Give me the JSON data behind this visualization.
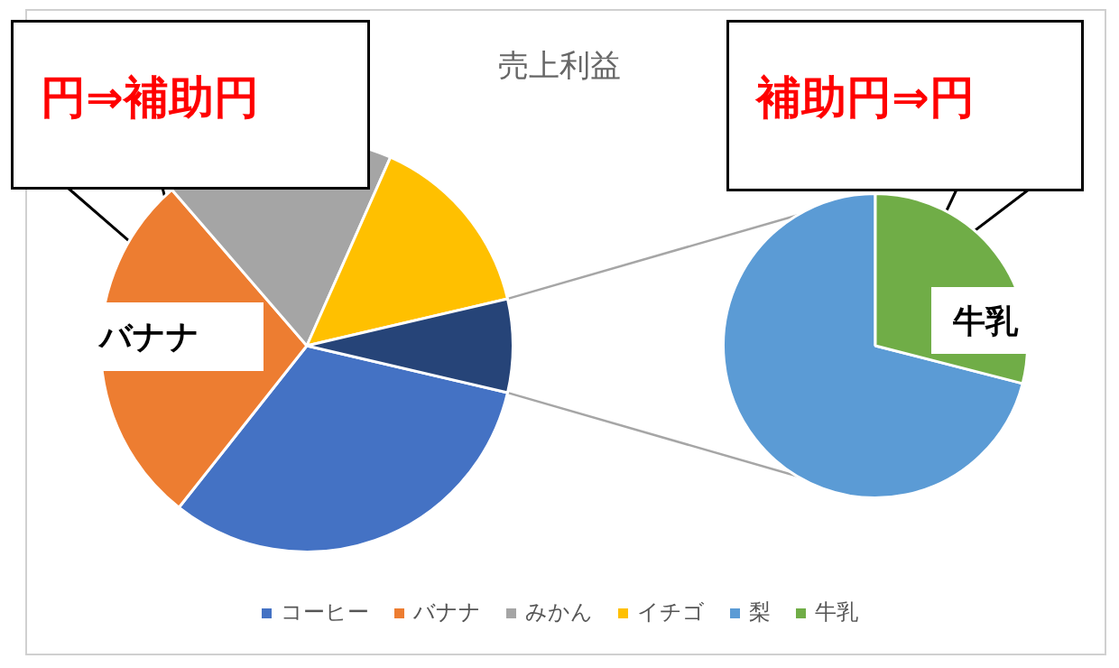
{
  "chart_data": [
    {
      "type": "pie",
      "title": "売上利益",
      "categories": [
        "コーヒー",
        "バナナ",
        "みかん",
        "イチゴ",
        null
      ],
      "values": [
        32,
        28,
        18,
        14.7,
        7.3
      ],
      "colors": [
        "#4472c4",
        "#ed7d31",
        "#a5a5a5",
        "#ffc000",
        "#264478"
      ],
      "legend": "bottom",
      "annotations": [
        "円⇒補助円",
        "バナナ"
      ]
    },
    {
      "type": "pie",
      "categories": [
        "梨",
        "牛乳"
      ],
      "values": [
        71,
        29
      ],
      "colors": [
        "#5b9bd5",
        "#70ad47"
      ],
      "legend": "bottom",
      "annotations": [
        "補助円⇒円",
        "牛乳"
      ]
    }
  ]
}
